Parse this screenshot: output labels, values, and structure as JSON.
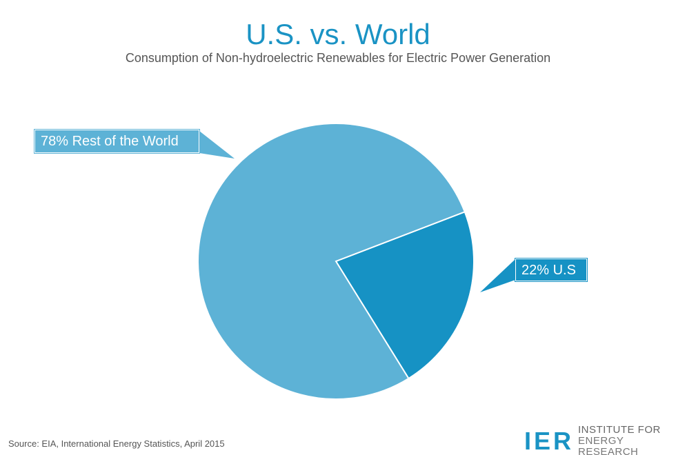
{
  "header": {
    "title": "U.S. vs. World",
    "subtitle": "Consumption of Non-hydroelectric Renewables for Electric Power Generation"
  },
  "chart_data": {
    "type": "pie",
    "title": "U.S. vs. World",
    "subtitle": "Consumption of Non-hydroelectric Renewables for Electric Power Generation",
    "slices": [
      {
        "name": "U.S",
        "value": 22,
        "label": "22% U.S",
        "color": "#1692c4"
      },
      {
        "name": "Rest of the World",
        "value": 78,
        "label": "78% Rest of the World",
        "color": "#5db2d6"
      }
    ]
  },
  "footer": {
    "source": "Source: EIA, International Energy Statistics, April 2015",
    "logo_mark": "IER",
    "logo_line1": "INSTITUTE FOR",
    "logo_line2": "ENERGY RESEARCH"
  }
}
